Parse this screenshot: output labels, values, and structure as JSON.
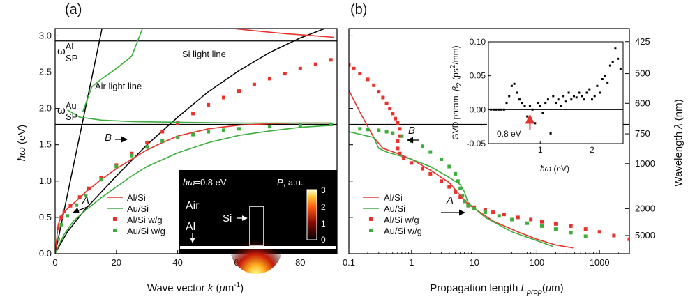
{
  "chart_data": [
    {
      "panel_label": "(a)",
      "type": "line",
      "xlabel": "Wave vector k (μm-1)",
      "xlabel_parts": [
        "Wave vector ",
        "k",
        " (",
        "μ",
        "m",
        "-1",
        ")"
      ],
      "ylabel": "ħω (eV)",
      "ylabel_parts": [
        "ħω",
        " (eV)"
      ],
      "xlim": [
        0,
        92
      ],
      "ylim": [
        0,
        3.1
      ],
      "xticks": [
        0,
        20,
        40,
        60,
        80
      ],
      "yticks": [
        "0.0",
        "0.5",
        "1.0",
        "1.5",
        "2.0",
        "2.5",
        "3.0"
      ],
      "hlines": [
        2.93,
        1.78
      ],
      "annotations": {
        "sp_al": "ωSP Al",
        "sp_al_parts": [
          "ω",
          "Al",
          "SP"
        ],
        "sp_au": "ωSP Au",
        "sp_au_parts": [
          "ω",
          "Au",
          "SP"
        ],
        "air_light": "Air light line",
        "si_light": "Si light line",
        "A": "A",
        "B": "B"
      },
      "light_lines": {
        "air": {
          "k": [
            0,
            15.3
          ],
          "E": [
            0,
            3.1
          ],
          "color": "#000000"
        },
        "si": {
          "k": [
            0.2,
            4,
            10,
            20,
            30,
            40,
            50,
            60,
            70,
            80,
            88
          ],
          "E": [
            0.02,
            0.3,
            0.62,
            1.07,
            1.5,
            1.88,
            2.23,
            2.52,
            2.77,
            2.97,
            3.1
          ],
          "color": "#000000"
        }
      },
      "series": [
        {
          "name": "Al/Si",
          "color": "#e8332c",
          "style": "line",
          "x": [
            0,
            1,
            2,
            4,
            7,
            10,
            15,
            20,
            25,
            30,
            35,
            40,
            50,
            60,
            70,
            80,
            90
          ],
          "y": [
            0,
            0.4,
            0.52,
            0.62,
            0.73,
            0.85,
            1.02,
            1.17,
            1.3,
            1.43,
            1.53,
            1.62,
            1.72,
            1.77,
            1.79,
            1.8,
            1.8
          ]
        },
        {
          "name": "Au/Si",
          "color": "#3dae3d",
          "style": "line",
          "x": [
            0,
            1,
            3,
            6,
            10,
            15,
            20,
            25,
            30,
            40,
            50,
            60,
            70,
            80,
            91
          ],
          "y": [
            0,
            0.1,
            0.27,
            0.45,
            0.6,
            0.77,
            0.92,
            1.07,
            1.2,
            1.39,
            1.53,
            1.63,
            1.69,
            1.74,
            1.77
          ]
        },
        {
          "name": "Al/Si w/g",
          "color": "#e8332c",
          "style": "marker",
          "x": [
            1,
            2,
            3,
            5,
            8,
            11,
            15,
            20,
            25,
            30,
            35,
            40,
            45,
            50,
            55,
            60,
            65,
            70,
            75,
            80,
            85,
            90
          ],
          "y": [
            0.35,
            0.5,
            0.58,
            0.66,
            0.78,
            0.9,
            1.05,
            1.22,
            1.38,
            1.53,
            1.68,
            1.8,
            1.93,
            2.05,
            2.15,
            2.24,
            2.33,
            2.41,
            2.48,
            2.55,
            2.61,
            2.67
          ]
        },
        {
          "name": "Au/Si w/g",
          "color": "#3dae3d",
          "style": "marker",
          "x": [
            1,
            2,
            4,
            7,
            10,
            15,
            20,
            25,
            30,
            35,
            40,
            45,
            50,
            55,
            60,
            70,
            80,
            90
          ],
          "y": [
            0.2,
            0.4,
            0.52,
            0.67,
            0.8,
            1.02,
            1.2,
            1.35,
            1.47,
            1.55,
            1.6,
            1.64,
            1.68,
            1.7,
            1.72,
            1.75,
            1.77,
            1.78
          ]
        },
        {
          "name": "",
          "color": "#3dae3d",
          "style": "line",
          "x": [
            9,
            12,
            15,
            20,
            25,
            28.5
          ],
          "y": [
            1.95,
            2.3,
            2.4,
            2.55,
            2.72,
            3.1
          ]
        },
        {
          "name": "",
          "color": "#3dae3d",
          "style": "line",
          "x": [
            4,
            8,
            15,
            25,
            40,
            60,
            91
          ],
          "y": [
            1.98,
            1.88,
            1.84,
            1.82,
            1.81,
            1.8,
            1.8
          ]
        },
        {
          "name": "",
          "color": "#e8332c",
          "style": "line",
          "x": [
            58,
            65,
            75,
            85,
            91
          ],
          "y": [
            3.1,
            3.07,
            3.03,
            3.0,
            2.98
          ]
        }
      ],
      "inset": {
        "hw_label": "ħω=0.8 eV",
        "hw_label_parts": [
          "ħω",
          "=0.8 eV"
        ],
        "p_label": "P, a.u.",
        "p_label_parts": [
          "P",
          ", a.u."
        ],
        "air": "Air",
        "si": "Si",
        "al": "Al",
        "colorbar_ticks": [
          "3",
          "2",
          "1",
          "0"
        ]
      }
    },
    {
      "panel_label": "(b)",
      "type": "line",
      "xlabel": "Propagation length Lprop(μm)",
      "xlabel_parts": [
        "Propagation length ",
        "L",
        "prop",
        "(",
        "μ",
        "m)"
      ],
      "right_ylabel": "Wavelength λ (nm)",
      "right_ylabel_parts": [
        "Wavelength ",
        "λ",
        " (nm)"
      ],
      "xscale": "log",
      "xlim": [
        0.1,
        3000
      ],
      "ylim": [
        0,
        3.1
      ],
      "xticks": [
        "0.1",
        "1",
        "10",
        "100",
        "1000"
      ],
      "xtick_values": [
        0.1,
        1,
        10,
        100,
        1000
      ],
      "right_ticks": [
        "425",
        "500",
        "600",
        "750",
        "1000",
        "2000",
        "5000"
      ],
      "right_tick_values": [
        2.92,
        2.48,
        2.07,
        1.65,
        1.24,
        0.62,
        0.25
      ],
      "hlines": [
        1.78
      ],
      "annotations": {
        "A": "A",
        "B": "B"
      },
      "series": [
        {
          "name": "Al/Si",
          "color": "#e8332c",
          "style": "line",
          "x": [
            0.1,
            0.15,
            0.25,
            0.35,
            0.6,
            1,
            2,
            4,
            6,
            8,
            20,
            50,
            100,
            200,
            380
          ],
          "y": [
            2.25,
            1.95,
            1.6,
            1.45,
            1.38,
            1.3,
            1.15,
            0.98,
            0.8,
            0.68,
            0.45,
            0.3,
            0.2,
            0.12,
            0.08
          ]
        },
        {
          "name": "Au/Si",
          "color": "#3dae3d",
          "style": "line",
          "x": [
            0.1,
            0.25,
            0.3,
            0.4,
            1,
            2,
            4,
            6,
            7,
            8,
            15,
            40,
            100,
            180
          ],
          "y": [
            1.68,
            1.6,
            1.45,
            1.4,
            1.3,
            1.2,
            1.05,
            0.95,
            0.85,
            0.7,
            0.5,
            0.3,
            0.18,
            0.1
          ]
        },
        {
          "name": "Al/Si w/g",
          "color": "#e8332c",
          "style": "marker",
          "x": [
            0.1,
            0.12,
            0.15,
            0.2,
            0.25,
            0.3,
            0.35,
            0.4,
            0.45,
            0.5,
            0.55,
            0.6,
            0.65,
            0.65,
            0.6,
            0.6,
            0.65,
            0.75,
            1,
            1.5,
            2,
            3,
            4,
            5,
            6,
            7,
            8,
            10,
            15,
            20,
            30,
            50,
            80,
            120,
            200,
            350,
            600,
            1000,
            1700,
            3000
          ],
          "y": [
            2.6,
            2.55,
            2.48,
            2.4,
            2.32,
            2.23,
            2.15,
            2.07,
            2.0,
            1.93,
            1.86,
            1.8,
            1.72,
            1.62,
            1.55,
            1.45,
            1.38,
            1.32,
            1.25,
            1.17,
            1.1,
            1.0,
            0.92,
            0.85,
            0.78,
            0.72,
            0.68,
            0.64,
            0.6,
            0.57,
            0.54,
            0.5,
            0.47,
            0.44,
            0.41,
            0.38,
            0.34,
            0.3,
            0.25,
            0.2
          ]
        },
        {
          "name": "Au/Si w/g",
          "color": "#3dae3d",
          "style": "marker",
          "x": [
            0.15,
            0.2,
            0.3,
            0.4,
            0.5,
            0.7,
            1,
            1.5,
            2,
            3,
            4,
            5,
            5.5,
            6,
            6.5,
            7,
            8,
            10,
            15,
            25,
            40,
            70,
            120,
            200,
            350,
            600
          ],
          "y": [
            1.72,
            1.71,
            1.7,
            1.68,
            1.66,
            1.62,
            1.55,
            1.48,
            1.4,
            1.3,
            1.2,
            1.1,
            1.0,
            0.9,
            0.8,
            0.72,
            0.66,
            0.62,
            0.57,
            0.52,
            0.47,
            0.42,
            0.38,
            0.34,
            0.29,
            0.24
          ]
        }
      ],
      "inset": {
        "ylabel": "GVD param. β2 (ps2/mm)",
        "ylabel_parts": [
          "GVD param. ",
          "β",
          "2",
          " (ps",
          "2",
          "/mm)"
        ],
        "xlabel": "ħω (eV)",
        "xlabel_parts": [
          "ħω",
          " (eV)"
        ],
        "xlim": [
          0,
          2.6
        ],
        "ylim": [
          -0.05,
          0.1
        ],
        "xticks": [
          "0",
          "1",
          "2"
        ],
        "xtick_values": [
          0,
          1,
          2
        ],
        "yticks": [
          "-0.05",
          "0.00",
          "0.05",
          "0.10"
        ],
        "ytick_values": [
          -0.05,
          0,
          0.05,
          0.1
        ],
        "arrow_label": "0.8 eV",
        "arrow_at": 0.8,
        "points": {
          "x": [
            0.05,
            0.1,
            0.15,
            0.2,
            0.25,
            0.3,
            0.35,
            0.4,
            0.45,
            0.5,
            0.55,
            0.6,
            0.65,
            0.7,
            0.75,
            0.8,
            0.85,
            0.9,
            0.95,
            1.0,
            1.05,
            1.1,
            1.15,
            1.2,
            1.25,
            1.3,
            1.35,
            1.4,
            1.45,
            1.5,
            1.55,
            1.6,
            1.65,
            1.7,
            1.75,
            1.8,
            1.85,
            1.9,
            1.95,
            2.0,
            2.05,
            2.1,
            2.15,
            2.2,
            2.25,
            2.3,
            2.35,
            2.4,
            2.45,
            2.5,
            2.55
          ],
          "y": [
            0.0,
            0.0,
            0.0,
            0.0,
            0.0,
            0.0,
            0.01,
            0.02,
            0.035,
            0.038,
            0.025,
            0.015,
            0.01,
            0.005,
            -0.01,
            0.005,
            0.0,
            -0.02,
            0.01,
            0.005,
            -0.005,
            0.01,
            0.015,
            -0.035,
            0.02,
            0.01,
            0.015,
            0.005,
            0.02,
            0.012,
            0.025,
            0.015,
            0.02,
            0.018,
            0.025,
            0.02,
            0.015,
            0.025,
            0.03,
            0.015,
            0.02,
            0.035,
            0.025,
            0.045,
            0.05,
            0.04,
            0.065,
            0.07,
            0.09,
            0.075,
            0.06
          ]
        }
      },
      "legend": [
        "Al/Si",
        "Au/Si",
        "Al/Si w/g",
        "Au/Si w/g"
      ]
    }
  ]
}
